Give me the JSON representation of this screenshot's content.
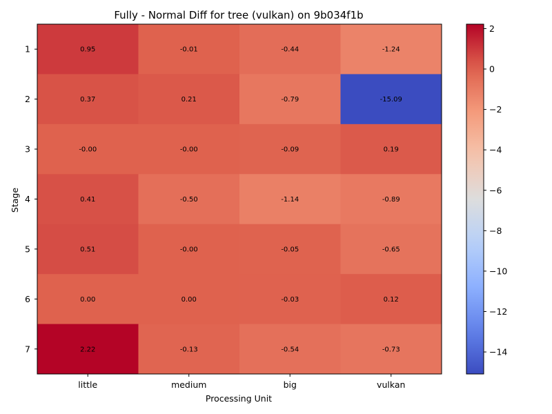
{
  "chart_data": {
    "type": "heatmap",
    "title": "Fully - Normal Diff for tree (vulkan) on 9b034f1b",
    "xlabel": "Processing Unit",
    "ylabel": "Stage",
    "x_categories": [
      "little",
      "medium",
      "big",
      "vulkan"
    ],
    "y_categories": [
      "1",
      "2",
      "3",
      "4",
      "5",
      "6",
      "7"
    ],
    "values": [
      [
        0.95,
        -0.01,
        -0.44,
        -1.24
      ],
      [
        0.37,
        0.21,
        -0.79,
        -15.09
      ],
      [
        -0.0,
        -0.0,
        -0.09,
        0.19
      ],
      [
        0.41,
        -0.5,
        -1.14,
        -0.89
      ],
      [
        0.51,
        -0.0,
        -0.05,
        -0.65
      ],
      [
        0.0,
        0.0,
        -0.03,
        0.12
      ],
      [
        2.22,
        -0.13,
        -0.54,
        -0.73
      ]
    ],
    "cell_labels": [
      [
        "0.95",
        "-0.01",
        "-0.44",
        "-1.24"
      ],
      [
        "0.37",
        "0.21",
        "-0.79",
        "-15.09"
      ],
      [
        "-0.00",
        "-0.00",
        "-0.09",
        "0.19"
      ],
      [
        "0.41",
        "-0.50",
        "-1.14",
        "-0.89"
      ],
      [
        "0.51",
        "-0.00",
        "-0.05",
        "-0.65"
      ],
      [
        "0.00",
        "0.00",
        "-0.03",
        "0.12"
      ],
      [
        "2.22",
        "-0.13",
        "-0.54",
        "-0.73"
      ]
    ],
    "colormap": "coolwarm",
    "vmin": -15.09,
    "vmax": 2.22,
    "colorbar": {
      "ticks": [
        2,
        0,
        -2,
        -4,
        -6,
        -8,
        -10,
        -12,
        -14
      ],
      "tick_labels": [
        "2",
        "0",
        "−2",
        "−4",
        "−6",
        "−8",
        "−10",
        "−12",
        "−14"
      ]
    },
    "legend": "colorbar-right",
    "grid": false
  }
}
